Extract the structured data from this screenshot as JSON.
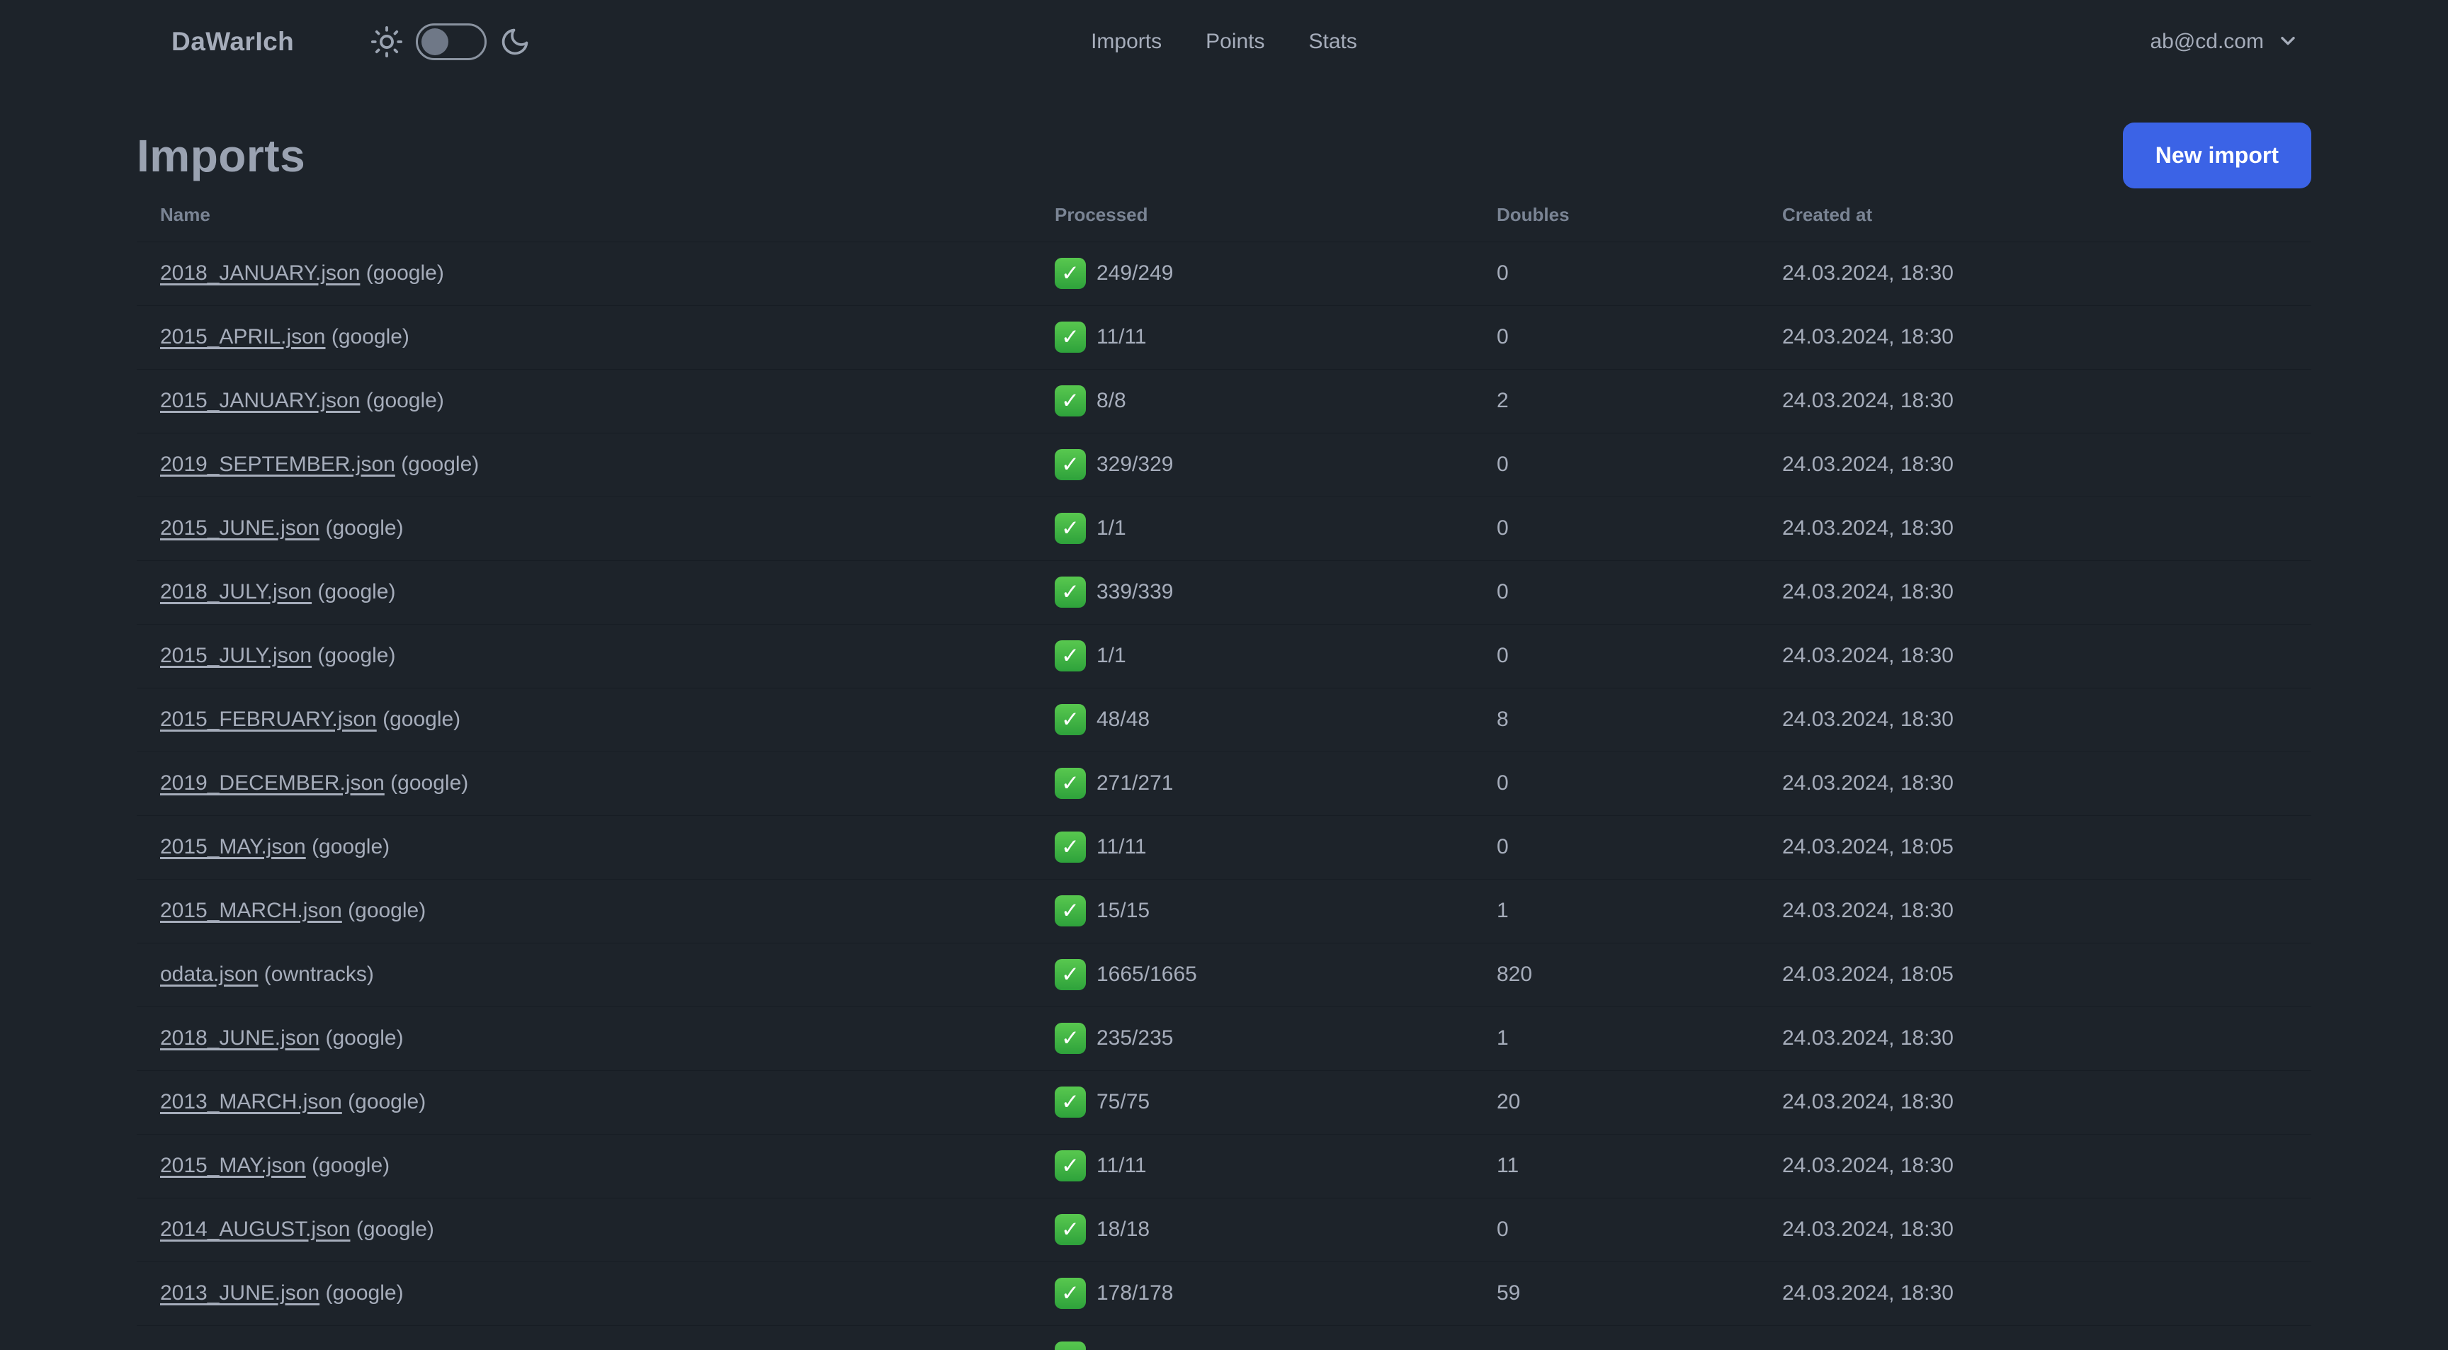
{
  "colors": {
    "background": "#1d232a",
    "text": "#a6adbb",
    "muted_header_text": "#7a8494",
    "title_text": "#9aa2b1",
    "primary_button": "#3b63e6",
    "button_text": "#ffffff",
    "row_divider": "#171d24",
    "success_green": "#3fb943",
    "toggle_knob": "#6f7887"
  },
  "icons": {
    "check_glyph": "✓"
  },
  "navbar": {
    "logo": "DaWarIch",
    "theme_toggle": {
      "state": "off"
    },
    "links": [
      {
        "label": "Imports"
      },
      {
        "label": "Points"
      },
      {
        "label": "Stats"
      }
    ],
    "user_menu": {
      "email": "ab@cd.com"
    }
  },
  "page": {
    "title": "Imports",
    "new_import_button": "New import"
  },
  "table": {
    "columns": [
      "Name",
      "Processed",
      "Doubles",
      "Created at"
    ],
    "rows": [
      {
        "name": "2018_JANUARY.json",
        "source": "(google)",
        "processed": "249/249",
        "doubles": "0",
        "created_at": "24.03.2024, 18:30"
      },
      {
        "name": "2015_APRIL.json",
        "source": "(google)",
        "processed": "11/11",
        "doubles": "0",
        "created_at": "24.03.2024, 18:30"
      },
      {
        "name": "2015_JANUARY.json",
        "source": "(google)",
        "processed": "8/8",
        "doubles": "2",
        "created_at": "24.03.2024, 18:30"
      },
      {
        "name": "2019_SEPTEMBER.json",
        "source": "(google)",
        "processed": "329/329",
        "doubles": "0",
        "created_at": "24.03.2024, 18:30"
      },
      {
        "name": "2015_JUNE.json",
        "source": "(google)",
        "processed": "1/1",
        "doubles": "0",
        "created_at": "24.03.2024, 18:30"
      },
      {
        "name": "2018_JULY.json",
        "source": "(google)",
        "processed": "339/339",
        "doubles": "0",
        "created_at": "24.03.2024, 18:30"
      },
      {
        "name": "2015_JULY.json",
        "source": "(google)",
        "processed": "1/1",
        "doubles": "0",
        "created_at": "24.03.2024, 18:30"
      },
      {
        "name": "2015_FEBRUARY.json",
        "source": "(google)",
        "processed": "48/48",
        "doubles": "8",
        "created_at": "24.03.2024, 18:30"
      },
      {
        "name": "2019_DECEMBER.json",
        "source": "(google)",
        "processed": "271/271",
        "doubles": "0",
        "created_at": "24.03.2024, 18:30"
      },
      {
        "name": "2015_MAY.json",
        "source": "(google)",
        "processed": "11/11",
        "doubles": "0",
        "created_at": "24.03.2024, 18:05"
      },
      {
        "name": "2015_MARCH.json",
        "source": "(google)",
        "processed": "15/15",
        "doubles": "1",
        "created_at": "24.03.2024, 18:30"
      },
      {
        "name": "odata.json",
        "source": "(owntracks)",
        "processed": "1665/1665",
        "doubles": "820",
        "created_at": "24.03.2024, 18:05"
      },
      {
        "name": "2018_JUNE.json",
        "source": "(google)",
        "processed": "235/235",
        "doubles": "1",
        "created_at": "24.03.2024, 18:30"
      },
      {
        "name": "2013_MARCH.json",
        "source": "(google)",
        "processed": "75/75",
        "doubles": "20",
        "created_at": "24.03.2024, 18:30"
      },
      {
        "name": "2015_MAY.json",
        "source": "(google)",
        "processed": "11/11",
        "doubles": "11",
        "created_at": "24.03.2024, 18:30"
      },
      {
        "name": "2014_AUGUST.json",
        "source": "(google)",
        "processed": "18/18",
        "doubles": "0",
        "created_at": "24.03.2024, 18:30"
      },
      {
        "name": "2013_JUNE.json",
        "source": "(google)",
        "processed": "178/178",
        "doubles": "59",
        "created_at": "24.03.2024, 18:30"
      }
    ],
    "partial_row": {
      "status_icon_visible": true
    }
  }
}
